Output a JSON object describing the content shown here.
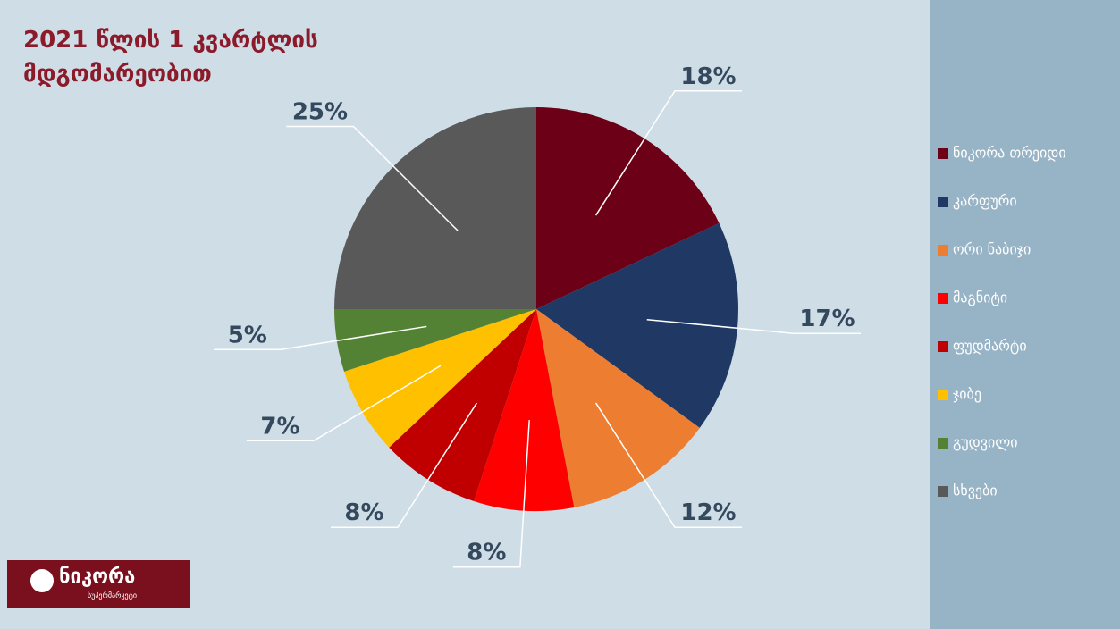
{
  "chart_data": {
    "type": "pie",
    "title": "2021 წლის 1 კვარტლის მდგომარეობით",
    "categories": [
      "ნიკორა თრეიდი",
      "კარფური",
      "ორი ნაბიჯი",
      "მაგნიტი",
      "ფუდმარტი",
      "ჯიბე",
      "გუდვილი",
      "სხვები"
    ],
    "values": [
      18,
      17,
      12,
      8,
      8,
      7,
      5,
      25
    ],
    "value_labels": [
      "18%",
      "17%",
      "12%",
      "8%",
      "8%",
      "7%",
      "5%",
      "25%"
    ],
    "colors": [
      "#6b0016",
      "#1f3864",
      "#ed7d31",
      "#ff0000",
      "#c00000",
      "#ffc000",
      "#548235",
      "#595959"
    ],
    "legend": "right"
  },
  "logo": {
    "name": "ნიკორა",
    "tagline": "სუპერმარკეტი"
  }
}
